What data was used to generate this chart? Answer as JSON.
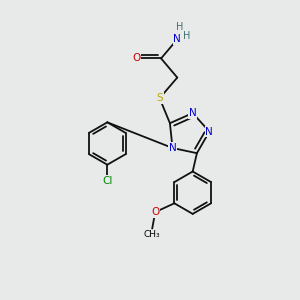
{
  "bg_color": "#e8eaea",
  "atom_colors": {
    "C": "#000000",
    "N": "#0000cc",
    "O": "#cc0000",
    "S": "#bbaa00",
    "Cl": "#008800",
    "H": "#407070"
  },
  "font_size": 7.5,
  "bond_lw": 1.3,
  "bond_color": "#111111"
}
